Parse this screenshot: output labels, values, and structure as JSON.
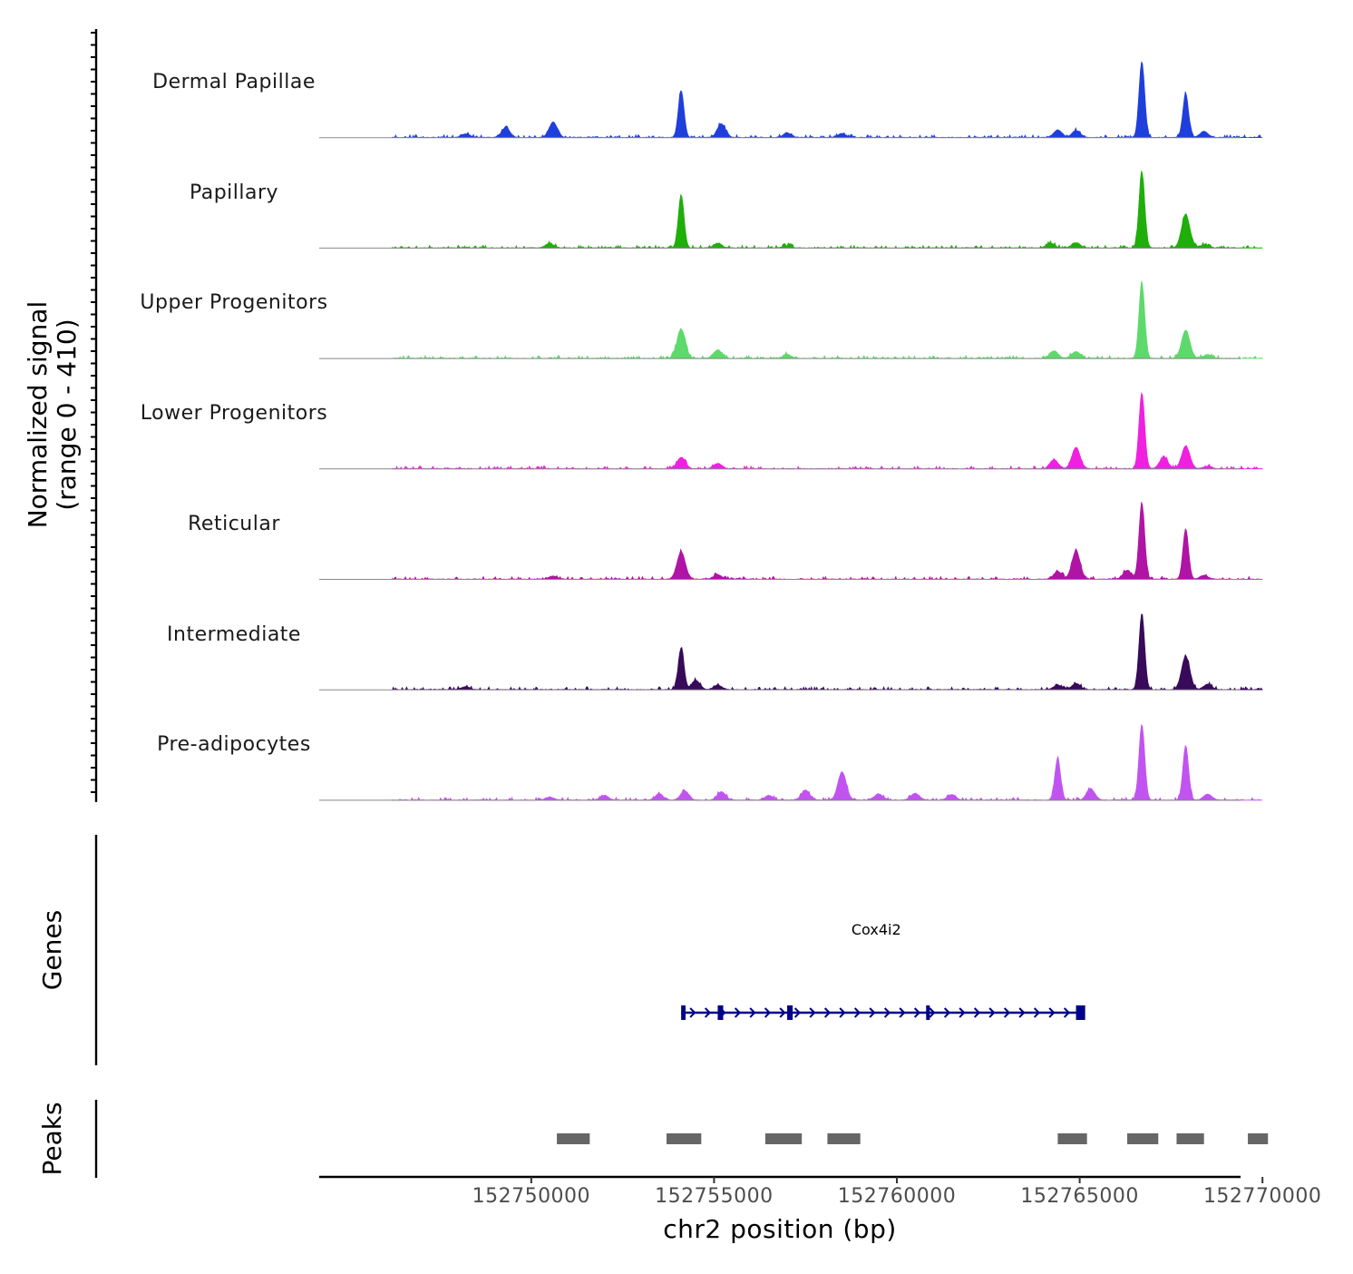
{
  "chart_data": {
    "type": "area",
    "title": "",
    "chromosome": "chr2",
    "xlabel": "chr2 position (bp)",
    "ylabel": "Normalized signal",
    "ylabel_range": "(range 0 - 410)",
    "xlim": [
      152744200,
      152769400
    ],
    "ylim": [
      0,
      410
    ],
    "x_ticks": [
      152750000,
      152755000,
      152760000,
      152765000,
      152770000
    ],
    "x_tick_labels": [
      "152750000",
      "152755000",
      "152760000",
      "152765000",
      "152770000"
    ],
    "series": [
      {
        "name": "Dermal Papillae",
        "color": "#1f3fdc",
        "peaks": [
          [
            152748200,
            0.05
          ],
          [
            152749300,
            0.13
          ],
          [
            152750600,
            0.2
          ],
          [
            152754100,
            0.62
          ],
          [
            152755200,
            0.18
          ],
          [
            152757000,
            0.06
          ],
          [
            152758500,
            0.05
          ],
          [
            152764400,
            0.1
          ],
          [
            152764900,
            0.09
          ],
          [
            152766700,
            1.0
          ],
          [
            152767900,
            0.58
          ],
          [
            152768400,
            0.08
          ]
        ]
      },
      {
        "name": "Papillary",
        "color": "#1fae0a",
        "peaks": [
          [
            152750500,
            0.06
          ],
          [
            152754100,
            0.7
          ],
          [
            152755100,
            0.06
          ],
          [
            152757000,
            0.03
          ],
          [
            152764200,
            0.06
          ],
          [
            152764900,
            0.07
          ],
          [
            152766700,
            1.0
          ],
          [
            152767900,
            0.44
          ],
          [
            152768400,
            0.04
          ]
        ]
      },
      {
        "name": "Upper Progenitors",
        "color": "#5ed96b",
        "peaks": [
          [
            152754100,
            0.38
          ],
          [
            152755100,
            0.11
          ],
          [
            152757000,
            0.05
          ],
          [
            152764300,
            0.1
          ],
          [
            152764900,
            0.09
          ],
          [
            152766700,
            1.0
          ],
          [
            152767900,
            0.37
          ],
          [
            152768500,
            0.05
          ]
        ]
      },
      {
        "name": "Lower Progenitors",
        "color": "#f020e0",
        "peaks": [
          [
            152754100,
            0.15
          ],
          [
            152755100,
            0.07
          ],
          [
            152764300,
            0.12
          ],
          [
            152764900,
            0.28
          ],
          [
            152766700,
            1.0
          ],
          [
            152767300,
            0.15
          ],
          [
            152767900,
            0.3
          ],
          [
            152768500,
            0.03
          ]
        ]
      },
      {
        "name": "Reticular",
        "color": "#b014a4",
        "peaks": [
          [
            152750600,
            0.04
          ],
          [
            152754100,
            0.36
          ],
          [
            152755100,
            0.06
          ],
          [
            152764400,
            0.1
          ],
          [
            152764900,
            0.37
          ],
          [
            152766300,
            0.12
          ],
          [
            152766700,
            1.0
          ],
          [
            152767900,
            0.66
          ],
          [
            152768400,
            0.05
          ]
        ]
      },
      {
        "name": "Intermediate",
        "color": "#370a5a",
        "peaks": [
          [
            152748200,
            0.04
          ],
          [
            152754100,
            0.55
          ],
          [
            152754500,
            0.12
          ],
          [
            152755100,
            0.06
          ],
          [
            152764400,
            0.06
          ],
          [
            152764900,
            0.08
          ],
          [
            152766700,
            1.0
          ],
          [
            152767900,
            0.44
          ],
          [
            152768500,
            0.07
          ]
        ]
      },
      {
        "name": "Pre-adipocytes",
        "color": "#c154f0",
        "peaks": [
          [
            152750500,
            0.04
          ],
          [
            152752000,
            0.06
          ],
          [
            152753500,
            0.08
          ],
          [
            152754200,
            0.12
          ],
          [
            152755200,
            0.11
          ],
          [
            152756500,
            0.06
          ],
          [
            152757500,
            0.13
          ],
          [
            152758500,
            0.37
          ],
          [
            152759500,
            0.08
          ],
          [
            152760500,
            0.09
          ],
          [
            152761500,
            0.07
          ],
          [
            152764400,
            0.55
          ],
          [
            152765300,
            0.15
          ],
          [
            152766700,
            1.0
          ],
          [
            152767900,
            0.72
          ],
          [
            152768500,
            0.08
          ]
        ]
      }
    ],
    "gene_track": {
      "label": "Genes",
      "gene": "Cox4i2",
      "strand": "+",
      "start": 152754100,
      "end": 152765100,
      "exons": [
        [
          152754100,
          152754220
        ],
        [
          152755100,
          152755250
        ],
        [
          152757000,
          152757150
        ],
        [
          152760800,
          152760900
        ],
        [
          152764900,
          152765150
        ]
      ]
    },
    "peak_track": {
      "label": "Peaks",
      "color": "#666666",
      "regions": [
        [
          152750700,
          152751600
        ],
        [
          152753700,
          152754650
        ],
        [
          152756400,
          152757400
        ],
        [
          152758100,
          152759000
        ],
        [
          152764400,
          152765200
        ],
        [
          152766300,
          152767150
        ],
        [
          152767650,
          152768400
        ],
        [
          152769600,
          152770150
        ]
      ]
    }
  }
}
